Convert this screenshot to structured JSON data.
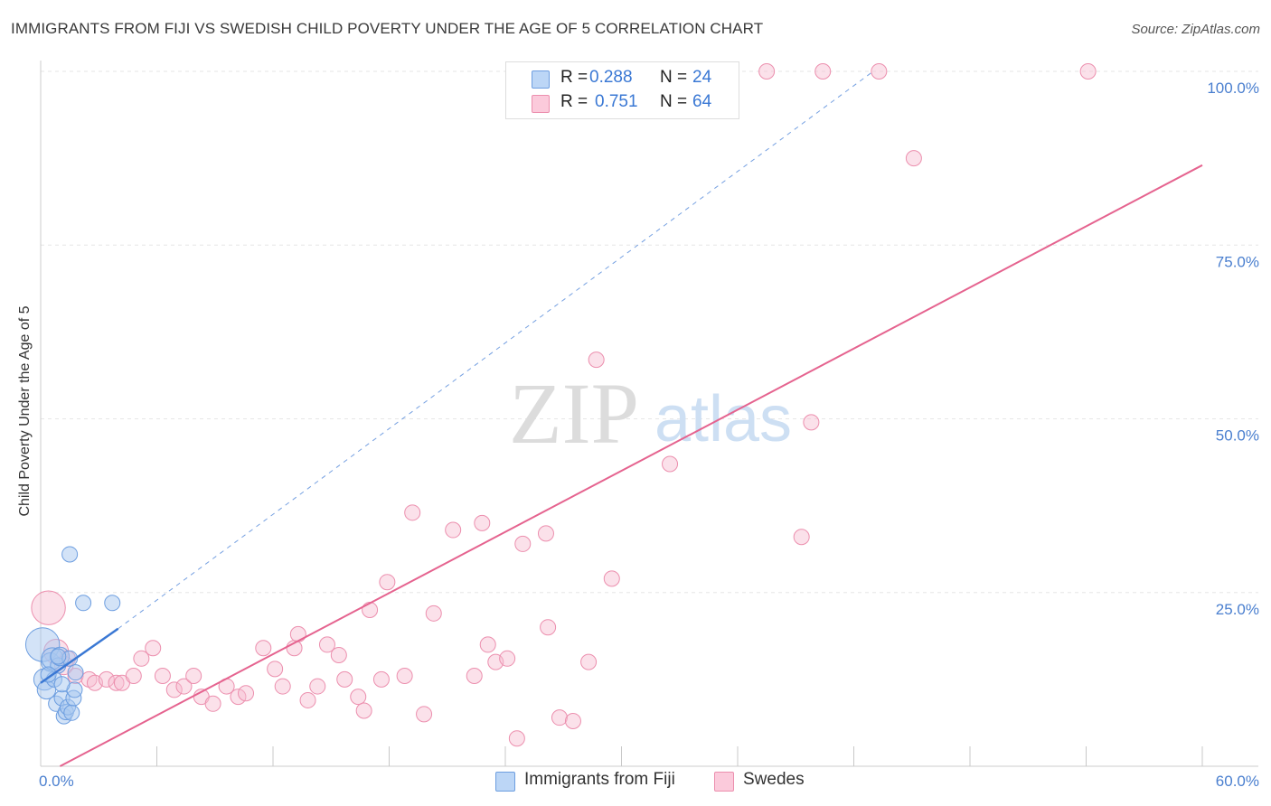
{
  "title": "IMMIGRANTS FROM FIJI VS SWEDISH CHILD POVERTY UNDER THE AGE OF 5 CORRELATION CHART",
  "source": "Source: ZipAtlas.com",
  "watermark": {
    "zip": "ZIP",
    "atlas": "atlas"
  },
  "legend": {
    "series1": {
      "r_label": "R =",
      "r_value": "0.288",
      "n_label": "N =",
      "n_value": "24"
    },
    "series2": {
      "r_label": "R =",
      "r_value": "0.751",
      "n_label": "N =",
      "n_value": "64"
    }
  },
  "bottom_legend": {
    "series1": "Immigrants from Fiji",
    "series2": "Swedes"
  },
  "colors": {
    "fiji_fill": "#a8c8f0",
    "fiji_stroke": "#6d9ee0",
    "fiji_line": "#3a78d4",
    "swedes_fill": "#f7bdd0",
    "swedes_stroke": "#ec8fae",
    "swedes_line": "#e5638f",
    "tick_text": "#4a7fcf",
    "grid": "#e6e6e6"
  },
  "chart_data": {
    "type": "scatter",
    "title": "IMMIGRANTS FROM FIJI VS SWEDISH CHILD POVERTY UNDER THE AGE OF 5 CORRELATION CHART",
    "xlabel": "",
    "ylabel": "Child Poverty Under the Age of 5",
    "xlim": [
      0,
      60
    ],
    "ylim": [
      0,
      100
    ],
    "x_tick_labels": [
      {
        "value": 0,
        "label": "0.0%"
      },
      {
        "value": 60,
        "label": "60.0%"
      }
    ],
    "y_tick_labels": [
      {
        "value": 25,
        "label": "25.0%"
      },
      {
        "value": 50,
        "label": "50.0%"
      },
      {
        "value": 75,
        "label": "75.0%"
      },
      {
        "value": 100,
        "label": "100.0%"
      }
    ],
    "x_minor_ticks": [
      6,
      12,
      18,
      24,
      30,
      36,
      42,
      48,
      54
    ],
    "series": [
      {
        "name": "Immigrants from Fiji",
        "R": 0.288,
        "N": 24,
        "points": [
          [
            0.1,
            17.5,
            2.2
          ],
          [
            0.2,
            12.5,
            1.4
          ],
          [
            0.3,
            11.0,
            1.2
          ],
          [
            0.5,
            15.0,
            1.2
          ],
          [
            0.6,
            15.5,
            1.4
          ],
          [
            0.7,
            12.5,
            1.0
          ],
          [
            0.8,
            9.0,
            1.0
          ],
          [
            0.9,
            14.5,
            1.0
          ],
          [
            1.0,
            15.8,
            1.2
          ],
          [
            1.1,
            9.8,
            1.0
          ],
          [
            1.2,
            7.2,
            1.0
          ],
          [
            1.3,
            7.8,
            1.0
          ],
          [
            1.4,
            8.5,
            1.0
          ],
          [
            1.5,
            15.5,
            1.0
          ],
          [
            1.6,
            7.7,
            1.0
          ],
          [
            1.7,
            9.8,
            1.0
          ],
          [
            1.75,
            11.0,
            1.0
          ],
          [
            1.8,
            13.5,
            1.0
          ],
          [
            1.5,
            30.5,
            1.0
          ],
          [
            2.2,
            23.5,
            1.0
          ],
          [
            3.7,
            23.5,
            1.0
          ],
          [
            0.4,
            13.2,
            1.0
          ],
          [
            1.1,
            11.8,
            1.0
          ],
          [
            0.9,
            15.8,
            1.0
          ]
        ],
        "trendline": {
          "x": [
            0,
            4
          ],
          "y": [
            12.0,
            19.8
          ],
          "extended_x": [
            4,
            43
          ],
          "extended_y": [
            19.8,
            100.0
          ]
        }
      },
      {
        "name": "Swedes",
        "R": 0.751,
        "N": 64,
        "points": [
          [
            0.4,
            22.8,
            2.2
          ],
          [
            0.8,
            16.5,
            1.6
          ],
          [
            1.2,
            14.5,
            1.2
          ],
          [
            1.4,
            15.5,
            1.0
          ],
          [
            1.8,
            13.0,
            1.0
          ],
          [
            2.5,
            12.5,
            1.0
          ],
          [
            2.8,
            12.0,
            1.0
          ],
          [
            3.4,
            12.5,
            1.0
          ],
          [
            3.9,
            12.0,
            1.0
          ],
          [
            4.2,
            12.0,
            1.0
          ],
          [
            4.8,
            13.0,
            1.0
          ],
          [
            5.2,
            15.5,
            1.0
          ],
          [
            5.8,
            17.0,
            1.0
          ],
          [
            6.3,
            13.0,
            1.0
          ],
          [
            6.9,
            11.0,
            1.0
          ],
          [
            7.4,
            11.5,
            1.0
          ],
          [
            7.9,
            13.0,
            1.0
          ],
          [
            8.3,
            10.0,
            1.0
          ],
          [
            8.9,
            9.0,
            1.0
          ],
          [
            9.6,
            11.5,
            1.0
          ],
          [
            10.2,
            10.0,
            1.0
          ],
          [
            10.6,
            10.5,
            1.0
          ],
          [
            11.5,
            17.0,
            1.0
          ],
          [
            12.1,
            14.0,
            1.0
          ],
          [
            12.5,
            11.5,
            1.0
          ],
          [
            13.1,
            17.0,
            1.0
          ],
          [
            13.3,
            19.0,
            1.0
          ],
          [
            13.8,
            9.5,
            1.0
          ],
          [
            14.3,
            11.5,
            1.0
          ],
          [
            14.8,
            17.5,
            1.0
          ],
          [
            15.4,
            16.0,
            1.0
          ],
          [
            15.7,
            12.5,
            1.0
          ],
          [
            16.4,
            10.0,
            1.0
          ],
          [
            16.7,
            8.0,
            1.0
          ],
          [
            17.0,
            22.5,
            1.0
          ],
          [
            17.6,
            12.5,
            1.0
          ],
          [
            17.9,
            26.5,
            1.0
          ],
          [
            18.8,
            13.0,
            1.0
          ],
          [
            19.2,
            36.5,
            1.0
          ],
          [
            19.8,
            7.5,
            1.0
          ],
          [
            20.3,
            22.0,
            1.0
          ],
          [
            21.3,
            34.0,
            1.0
          ],
          [
            22.4,
            13.0,
            1.0
          ],
          [
            22.8,
            35.0,
            1.0
          ],
          [
            23.1,
            17.5,
            1.0
          ],
          [
            23.5,
            15.0,
            1.0
          ],
          [
            24.1,
            15.5,
            1.0
          ],
          [
            24.6,
            4.0,
            1.0
          ],
          [
            24.9,
            32.0,
            1.0
          ],
          [
            26.1,
            33.5,
            1.0
          ],
          [
            26.2,
            20.0,
            1.0
          ],
          [
            26.8,
            7.0,
            1.0
          ],
          [
            27.5,
            6.5,
            1.0
          ],
          [
            28.3,
            15.0,
            1.0
          ],
          [
            28.7,
            58.5,
            1.0
          ],
          [
            29.5,
            27.0,
            1.0
          ],
          [
            32.5,
            43.5,
            1.0
          ],
          [
            37.5,
            100.0,
            1.0
          ],
          [
            39.3,
            33.0,
            1.0
          ],
          [
            39.8,
            49.5,
            1.0
          ],
          [
            40.4,
            100.0,
            1.0
          ],
          [
            43.3,
            100.0,
            1.0
          ],
          [
            45.1,
            87.5,
            1.0
          ],
          [
            54.1,
            100.0,
            1.0
          ]
        ],
        "trendline": {
          "x": [
            1,
            60
          ],
          "y": [
            0.0,
            86.5
          ]
        }
      }
    ]
  }
}
